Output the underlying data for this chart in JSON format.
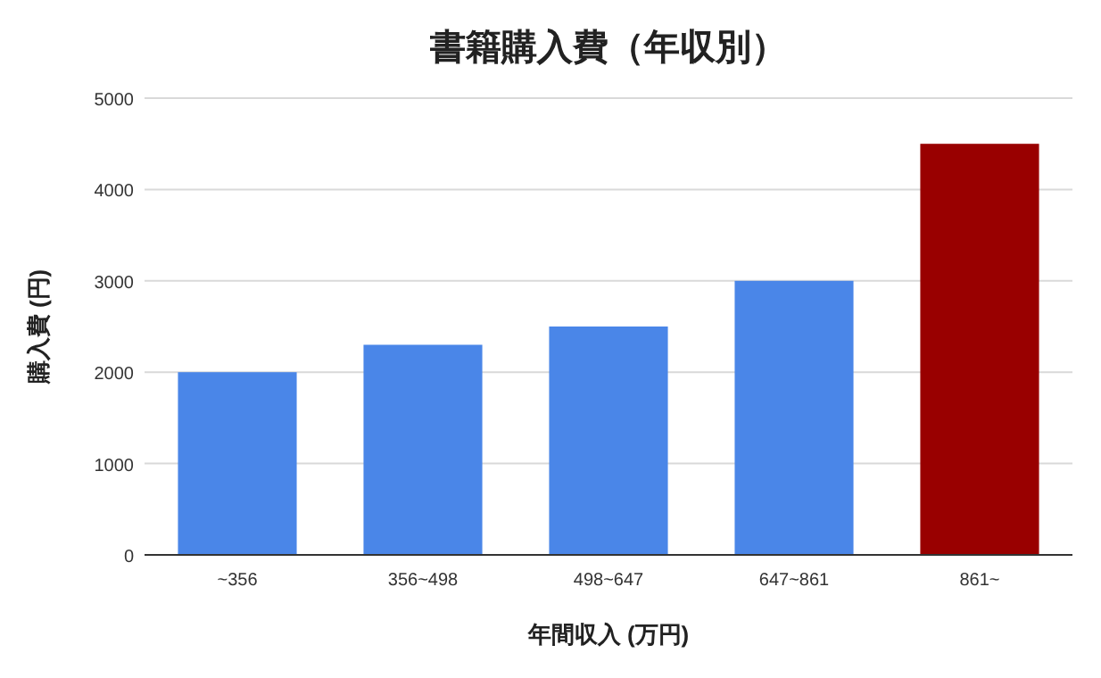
{
  "chart_data": {
    "type": "bar",
    "title": "書籍購入費（年収別）",
    "xlabel": "年間収入 (万円)",
    "ylabel": "購入費 (円)",
    "categories": [
      "~356",
      "356~498",
      "498~647",
      "647~861",
      "861~"
    ],
    "values": [
      2000,
      2300,
      2500,
      3000,
      4500
    ],
    "colors": [
      "#4a86e8",
      "#4a86e8",
      "#4a86e8",
      "#4a86e8",
      "#990000"
    ],
    "ylim": [
      0,
      5000
    ],
    "yticks": [
      0,
      1000,
      2000,
      3000,
      4000,
      5000
    ],
    "grid": "y"
  }
}
